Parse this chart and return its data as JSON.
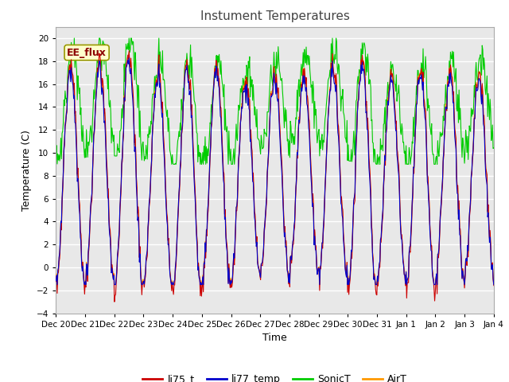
{
  "title": "Instument Temperatures",
  "xlabel": "Time",
  "ylabel": "Temperature (C)",
  "ylim": [
    -4,
    21
  ],
  "yticks": [
    -4,
    -2,
    0,
    2,
    4,
    6,
    8,
    10,
    12,
    14,
    16,
    18,
    20
  ],
  "x_tick_labels": [
    "Dec 20",
    "Dec 21",
    "Dec 22",
    "Dec 23",
    "Dec 24",
    "Dec 25",
    "Dec 26",
    "Dec 27",
    "Dec 28",
    "Dec 29",
    "Dec 30",
    "Dec 31",
    "Jan 1",
    "Jan 2",
    "Jan 3",
    "Jan 4"
  ],
  "legend_labels": [
    "li75_t",
    "li77_temp",
    "SonicT",
    "AirT"
  ],
  "line_colors": {
    "li75_t": "#cc0000",
    "li77_temp": "#0000cc",
    "SonicT": "#00cc00",
    "AirT": "#ff9900"
  },
  "annotation_text": "EE_flux",
  "bg_color": "#e8e8e8",
  "title_color": "#444444",
  "title_fontsize": 11,
  "grid_color": "#ffffff"
}
